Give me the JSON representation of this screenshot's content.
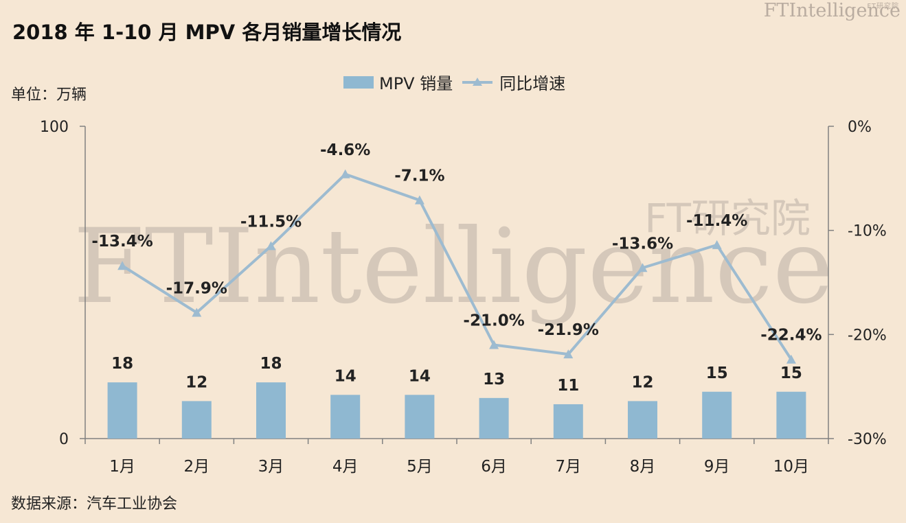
{
  "title": "2018 年 1-10 月 MPV 各月销量增长情况",
  "unit_label": "单位：万辆",
  "source": "数据来源：汽车工业协会",
  "brand": {
    "top_logo": "FTIntelligence",
    "top_logo_sub": "FT研究院",
    "watermark": "FTIntelligence",
    "watermark_sub": "FT研究院"
  },
  "legend": {
    "bar_label": "MPV 销量",
    "line_label": "同比增速"
  },
  "colors": {
    "background": "#f6e7d4",
    "bar": "#8fb8d1",
    "line": "#9dbbd0",
    "axis": "#808080",
    "watermark": "#c9bdb1"
  },
  "chart_data": {
    "type": "bar+line",
    "categories": [
      "1月",
      "2月",
      "3月",
      "4月",
      "5月",
      "6月",
      "7月",
      "8月",
      "9月",
      "10月"
    ],
    "series": [
      {
        "name": "MPV 销量",
        "type": "bar",
        "axis": "left",
        "values": [
          18,
          12,
          18,
          14,
          14,
          13,
          11,
          12,
          15,
          15
        ],
        "labels": [
          "18",
          "12",
          "18",
          "14",
          "14",
          "13",
          "11",
          "12",
          "15",
          "15"
        ]
      },
      {
        "name": "同比增速",
        "type": "line",
        "axis": "right",
        "values": [
          -13.4,
          -17.9,
          -11.5,
          -4.6,
          -7.1,
          -21.0,
          -21.9,
          -13.6,
          -11.4,
          -22.4
        ],
        "labels": [
          "-13.4%",
          "-17.9%",
          "-11.5%",
          "-4.6%",
          "-7.1%",
          "-21.0%",
          "-21.9%",
          "-13.6%",
          "-11.4%",
          "-22.4%"
        ]
      }
    ],
    "left_axis": {
      "min": 0,
      "max": 100,
      "ticks": [
        "0",
        "100"
      ]
    },
    "right_axis": {
      "min": -30,
      "max": 0,
      "ticks": [
        "0%",
        "-10%",
        "-20%",
        "-30%"
      ]
    },
    "grid": false,
    "legend_position": "top-center"
  }
}
